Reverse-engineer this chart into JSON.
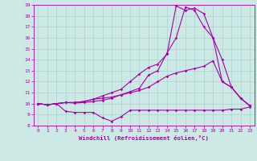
{
  "xlabel": "Windchill (Refroidissement éolien,°C)",
  "xlim": [
    -0.5,
    23.5
  ],
  "ylim": [
    8,
    19
  ],
  "yticks": [
    8,
    9,
    10,
    11,
    12,
    13,
    14,
    15,
    16,
    17,
    18,
    19
  ],
  "xticks": [
    0,
    1,
    2,
    3,
    4,
    5,
    6,
    7,
    8,
    9,
    10,
    11,
    12,
    13,
    14,
    15,
    16,
    17,
    18,
    19,
    20,
    21,
    22,
    23
  ],
  "background_color": "#cce9e5",
  "grid_color": "#aad4d0",
  "line_color": "#aa00aa",
  "lines": [
    [
      10.0,
      9.9,
      10.0,
      9.3,
      9.2,
      9.2,
      9.2,
      8.7,
      8.4,
      8.8,
      9.4,
      9.4,
      9.4,
      9.4,
      9.4,
      9.4,
      9.4,
      9.4,
      9.4,
      9.4,
      9.4,
      9.5,
      9.5,
      9.7
    ],
    [
      10.0,
      9.9,
      10.0,
      10.1,
      10.1,
      10.2,
      10.4,
      10.5,
      10.6,
      10.8,
      11.0,
      11.2,
      11.5,
      12.0,
      12.5,
      12.8,
      13.0,
      13.2,
      13.4,
      13.9,
      12.0,
      11.5,
      10.5,
      9.8
    ],
    [
      10.0,
      9.9,
      10.0,
      10.1,
      10.05,
      10.1,
      10.2,
      10.3,
      10.5,
      10.8,
      11.1,
      11.4,
      12.6,
      13.0,
      14.6,
      16.0,
      18.8,
      18.5,
      17.0,
      16.0,
      12.0,
      11.5,
      10.5,
      9.8
    ],
    [
      10.0,
      9.9,
      10.0,
      10.1,
      10.1,
      10.2,
      10.4,
      10.7,
      11.0,
      11.3,
      12.0,
      12.7,
      13.3,
      13.6,
      14.5,
      18.9,
      18.5,
      18.7,
      18.2,
      16.0,
      14.0,
      11.5,
      10.5,
      9.8
    ]
  ]
}
